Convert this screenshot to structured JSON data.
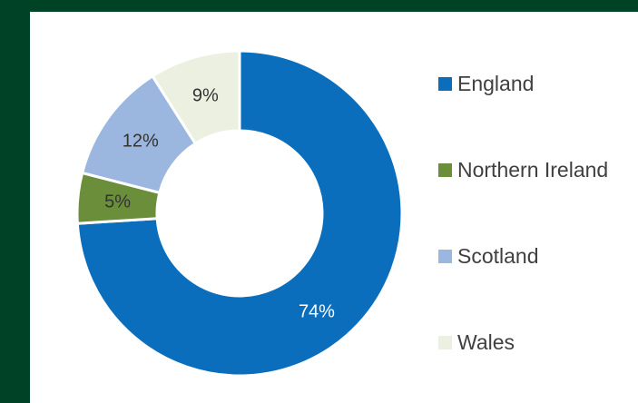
{
  "chart_data": {
    "type": "pie",
    "style": "donut",
    "categories": [
      "England",
      "Northern Ireland",
      "Scotland",
      "Wales"
    ],
    "values": [
      74,
      5,
      12,
      9
    ],
    "labels": [
      "74%",
      "5%",
      "12%",
      "9%"
    ],
    "colors": [
      "#0a6ebd",
      "#6b8e3a",
      "#9bb7e0",
      "#ecf0e0"
    ],
    "label_colors": [
      "#ffffff",
      "#333333",
      "#333333",
      "#333333"
    ],
    "legend_position": "right"
  }
}
